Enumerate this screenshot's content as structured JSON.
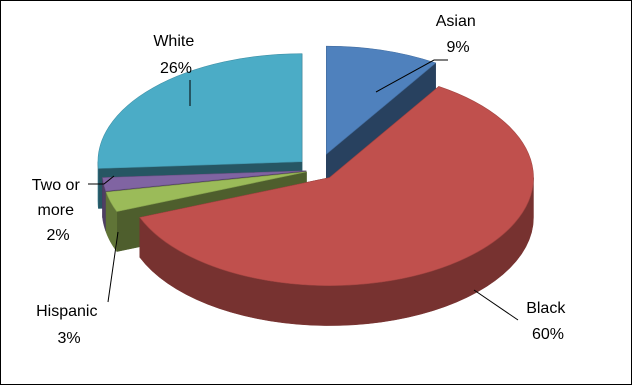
{
  "chart_data": {
    "type": "pie",
    "style": "3d-exploded",
    "title": "",
    "legend": "none",
    "slices": [
      {
        "name": "Asian",
        "label_lines": [
          "Asian",
          "9%"
        ],
        "value": 9,
        "color": "#4f81bd"
      },
      {
        "name": "Black",
        "label_lines": [
          "Black",
          "60%"
        ],
        "value": 60,
        "color": "#c0504d"
      },
      {
        "name": "Hispanic",
        "label_lines": [
          "Hispanic",
          "3%"
        ],
        "value": 3,
        "color": "#9bbb59"
      },
      {
        "name": "Two or more",
        "label_lines": [
          "Two or",
          "more",
          "2%"
        ],
        "value": 2,
        "color": "#8064a2"
      },
      {
        "name": "White",
        "label_lines": [
          "White",
          "26%"
        ],
        "value": 26,
        "color": "#4bacc6"
      }
    ]
  }
}
